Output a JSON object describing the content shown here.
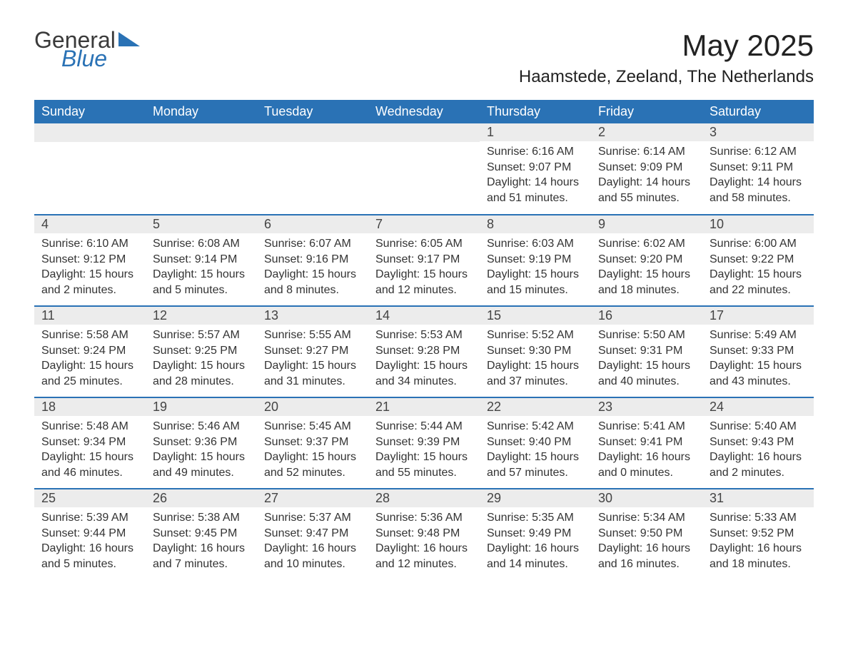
{
  "brand": {
    "word1": "General",
    "word2": "Blue",
    "logo_fill": "#2a72b5"
  },
  "title": "May 2025",
  "location": "Haamstede, Zeeland, The Netherlands",
  "colors": {
    "header_bg": "#2a72b5",
    "header_fg": "#ffffff",
    "daynum_bg": "#ececec",
    "row_divider": "#2a72b5",
    "text": "#333333",
    "page_bg": "#ffffff"
  },
  "day_headers": [
    "Sunday",
    "Monday",
    "Tuesday",
    "Wednesday",
    "Thursday",
    "Friday",
    "Saturday"
  ],
  "weeks": [
    [
      null,
      null,
      null,
      null,
      {
        "n": "1",
        "sunrise": "Sunrise: 6:16 AM",
        "sunset": "Sunset: 9:07 PM",
        "daylight": "Daylight: 14 hours and 51 minutes."
      },
      {
        "n": "2",
        "sunrise": "Sunrise: 6:14 AM",
        "sunset": "Sunset: 9:09 PM",
        "daylight": "Daylight: 14 hours and 55 minutes."
      },
      {
        "n": "3",
        "sunrise": "Sunrise: 6:12 AM",
        "sunset": "Sunset: 9:11 PM",
        "daylight": "Daylight: 14 hours and 58 minutes."
      }
    ],
    [
      {
        "n": "4",
        "sunrise": "Sunrise: 6:10 AM",
        "sunset": "Sunset: 9:12 PM",
        "daylight": "Daylight: 15 hours and 2 minutes."
      },
      {
        "n": "5",
        "sunrise": "Sunrise: 6:08 AM",
        "sunset": "Sunset: 9:14 PM",
        "daylight": "Daylight: 15 hours and 5 minutes."
      },
      {
        "n": "6",
        "sunrise": "Sunrise: 6:07 AM",
        "sunset": "Sunset: 9:16 PM",
        "daylight": "Daylight: 15 hours and 8 minutes."
      },
      {
        "n": "7",
        "sunrise": "Sunrise: 6:05 AM",
        "sunset": "Sunset: 9:17 PM",
        "daylight": "Daylight: 15 hours and 12 minutes."
      },
      {
        "n": "8",
        "sunrise": "Sunrise: 6:03 AM",
        "sunset": "Sunset: 9:19 PM",
        "daylight": "Daylight: 15 hours and 15 minutes."
      },
      {
        "n": "9",
        "sunrise": "Sunrise: 6:02 AM",
        "sunset": "Sunset: 9:20 PM",
        "daylight": "Daylight: 15 hours and 18 minutes."
      },
      {
        "n": "10",
        "sunrise": "Sunrise: 6:00 AM",
        "sunset": "Sunset: 9:22 PM",
        "daylight": "Daylight: 15 hours and 22 minutes."
      }
    ],
    [
      {
        "n": "11",
        "sunrise": "Sunrise: 5:58 AM",
        "sunset": "Sunset: 9:24 PM",
        "daylight": "Daylight: 15 hours and 25 minutes."
      },
      {
        "n": "12",
        "sunrise": "Sunrise: 5:57 AM",
        "sunset": "Sunset: 9:25 PM",
        "daylight": "Daylight: 15 hours and 28 minutes."
      },
      {
        "n": "13",
        "sunrise": "Sunrise: 5:55 AM",
        "sunset": "Sunset: 9:27 PM",
        "daylight": "Daylight: 15 hours and 31 minutes."
      },
      {
        "n": "14",
        "sunrise": "Sunrise: 5:53 AM",
        "sunset": "Sunset: 9:28 PM",
        "daylight": "Daylight: 15 hours and 34 minutes."
      },
      {
        "n": "15",
        "sunrise": "Sunrise: 5:52 AM",
        "sunset": "Sunset: 9:30 PM",
        "daylight": "Daylight: 15 hours and 37 minutes."
      },
      {
        "n": "16",
        "sunrise": "Sunrise: 5:50 AM",
        "sunset": "Sunset: 9:31 PM",
        "daylight": "Daylight: 15 hours and 40 minutes."
      },
      {
        "n": "17",
        "sunrise": "Sunrise: 5:49 AM",
        "sunset": "Sunset: 9:33 PM",
        "daylight": "Daylight: 15 hours and 43 minutes."
      }
    ],
    [
      {
        "n": "18",
        "sunrise": "Sunrise: 5:48 AM",
        "sunset": "Sunset: 9:34 PM",
        "daylight": "Daylight: 15 hours and 46 minutes."
      },
      {
        "n": "19",
        "sunrise": "Sunrise: 5:46 AM",
        "sunset": "Sunset: 9:36 PM",
        "daylight": "Daylight: 15 hours and 49 minutes."
      },
      {
        "n": "20",
        "sunrise": "Sunrise: 5:45 AM",
        "sunset": "Sunset: 9:37 PM",
        "daylight": "Daylight: 15 hours and 52 minutes."
      },
      {
        "n": "21",
        "sunrise": "Sunrise: 5:44 AM",
        "sunset": "Sunset: 9:39 PM",
        "daylight": "Daylight: 15 hours and 55 minutes."
      },
      {
        "n": "22",
        "sunrise": "Sunrise: 5:42 AM",
        "sunset": "Sunset: 9:40 PM",
        "daylight": "Daylight: 15 hours and 57 minutes."
      },
      {
        "n": "23",
        "sunrise": "Sunrise: 5:41 AM",
        "sunset": "Sunset: 9:41 PM",
        "daylight": "Daylight: 16 hours and 0 minutes."
      },
      {
        "n": "24",
        "sunrise": "Sunrise: 5:40 AM",
        "sunset": "Sunset: 9:43 PM",
        "daylight": "Daylight: 16 hours and 2 minutes."
      }
    ],
    [
      {
        "n": "25",
        "sunrise": "Sunrise: 5:39 AM",
        "sunset": "Sunset: 9:44 PM",
        "daylight": "Daylight: 16 hours and 5 minutes."
      },
      {
        "n": "26",
        "sunrise": "Sunrise: 5:38 AM",
        "sunset": "Sunset: 9:45 PM",
        "daylight": "Daylight: 16 hours and 7 minutes."
      },
      {
        "n": "27",
        "sunrise": "Sunrise: 5:37 AM",
        "sunset": "Sunset: 9:47 PM",
        "daylight": "Daylight: 16 hours and 10 minutes."
      },
      {
        "n": "28",
        "sunrise": "Sunrise: 5:36 AM",
        "sunset": "Sunset: 9:48 PM",
        "daylight": "Daylight: 16 hours and 12 minutes."
      },
      {
        "n": "29",
        "sunrise": "Sunrise: 5:35 AM",
        "sunset": "Sunset: 9:49 PM",
        "daylight": "Daylight: 16 hours and 14 minutes."
      },
      {
        "n": "30",
        "sunrise": "Sunrise: 5:34 AM",
        "sunset": "Sunset: 9:50 PM",
        "daylight": "Daylight: 16 hours and 16 minutes."
      },
      {
        "n": "31",
        "sunrise": "Sunrise: 5:33 AM",
        "sunset": "Sunset: 9:52 PM",
        "daylight": "Daylight: 16 hours and 18 minutes."
      }
    ]
  ]
}
